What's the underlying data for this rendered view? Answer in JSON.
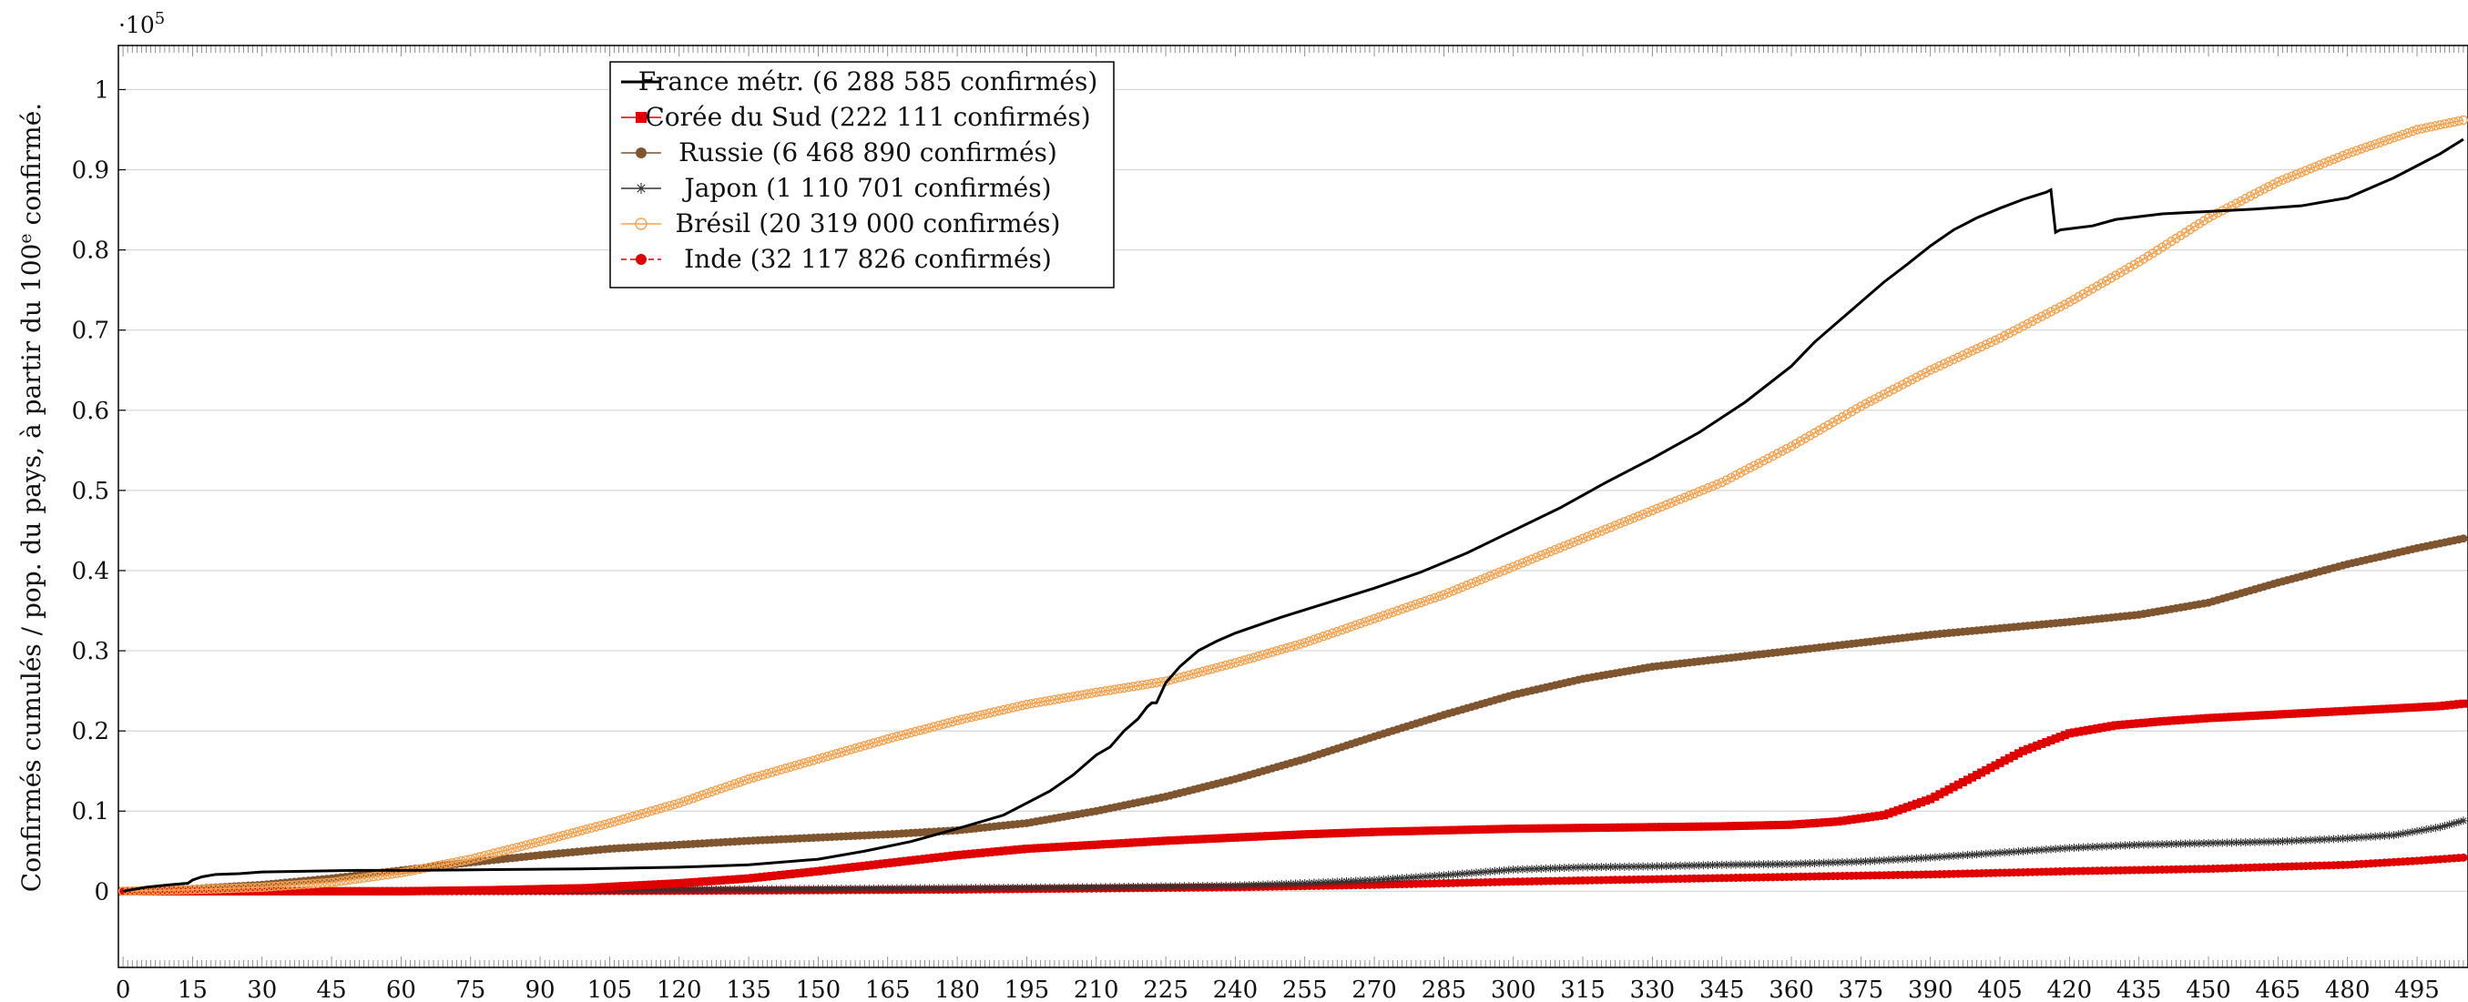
{
  "chart_data": {
    "type": "line",
    "xlabel": "",
    "ylabel": "Confirmés cumulés / pop. du pays, à partir du 100e confirmé.",
    "ylabel_main": "Confirmés cumulés / pop. du pays, à partir du 100",
    "ylabel_sup": "e",
    "ylabel_tail": " confirmé.",
    "y_exponent_base": "·10",
    "y_exponent_power": "5",
    "xlim": [
      -1,
      506
    ],
    "ylim": [
      -0.095,
      1.055
    ],
    "x_ticks": [
      0,
      15,
      30,
      45,
      60,
      75,
      90,
      105,
      120,
      135,
      150,
      165,
      180,
      195,
      210,
      225,
      240,
      255,
      270,
      285,
      300,
      315,
      330,
      345,
      360,
      375,
      390,
      405,
      420,
      435,
      450,
      465,
      480,
      495
    ],
    "y_ticks": [
      0,
      0.1,
      0.2,
      0.3,
      0.4,
      0.5,
      0.6,
      0.7,
      0.8,
      0.9,
      1
    ],
    "y_tick_labels": [
      "0",
      "0.1",
      "0.2",
      "0.3",
      "0.4",
      "0.5",
      "0.6",
      "0.7",
      "0.8",
      "0.9",
      "1"
    ],
    "grid": "horizontal",
    "legend_position": "top-left",
    "series": [
      {
        "name": "France métr. (6 288 585 confirmés)",
        "color": "#000000",
        "marker": "none",
        "x": [
          0,
          5,
          10,
          14,
          15,
          17,
          20,
          25,
          30,
          40,
          50,
          60,
          80,
          100,
          120,
          135,
          150,
          160,
          170,
          180,
          190,
          195,
          200,
          205,
          210,
          213,
          216,
          219,
          221,
          222,
          223,
          225,
          228,
          232,
          236,
          240,
          250,
          260,
          270,
          280,
          290,
          300,
          310,
          320,
          330,
          340,
          350,
          360,
          365,
          370,
          375,
          380,
          385,
          390,
          395,
          400,
          405,
          410,
          415,
          416,
          417,
          418,
          425,
          430,
          440,
          450,
          460,
          470,
          480,
          490,
          500,
          505
        ],
        "y": [
          0.0,
          0.005,
          0.008,
          0.01,
          0.014,
          0.018,
          0.021,
          0.022,
          0.024,
          0.025,
          0.026,
          0.026,
          0.027,
          0.028,
          0.03,
          0.033,
          0.04,
          0.05,
          0.062,
          0.078,
          0.095,
          0.11,
          0.125,
          0.145,
          0.17,
          0.18,
          0.2,
          0.215,
          0.23,
          0.235,
          0.235,
          0.26,
          0.28,
          0.3,
          0.312,
          0.322,
          0.342,
          0.36,
          0.378,
          0.398,
          0.422,
          0.45,
          0.478,
          0.51,
          0.54,
          0.572,
          0.61,
          0.655,
          0.685,
          0.71,
          0.735,
          0.76,
          0.782,
          0.805,
          0.825,
          0.84,
          0.852,
          0.863,
          0.872,
          0.875,
          0.822,
          0.825,
          0.83,
          0.838,
          0.845,
          0.848,
          0.851,
          0.855,
          0.865,
          0.89,
          0.92,
          0.938
        ]
      },
      {
        "name": "Corée du Sud (222 111 confirmés)",
        "color": "#e00000",
        "marker": "square",
        "x": [
          0,
          20,
          40,
          60,
          80,
          100,
          120,
          135,
          150,
          165,
          180,
          195,
          210,
          225,
          240,
          255,
          270,
          285,
          300,
          315,
          330,
          345,
          360,
          370,
          380,
          390,
          400,
          410,
          420,
          430,
          440,
          450,
          460,
          470,
          480,
          490,
          500,
          505
        ],
        "y": [
          0.0,
          0.0,
          0.0,
          0.0,
          0.0015,
          0.004,
          0.01,
          0.016,
          0.025,
          0.035,
          0.045,
          0.053,
          0.058,
          0.063,
          0.067,
          0.071,
          0.074,
          0.076,
          0.078,
          0.079,
          0.08,
          0.081,
          0.083,
          0.087,
          0.095,
          0.115,
          0.145,
          0.175,
          0.197,
          0.207,
          0.212,
          0.216,
          0.219,
          0.222,
          0.225,
          0.228,
          0.231,
          0.234
        ]
      },
      {
        "name": "Russie (6 468 890 confirmés)",
        "color": "#7f5530",
        "marker": "circle",
        "x": [
          0,
          15,
          30,
          45,
          60,
          75,
          90,
          105,
          120,
          135,
          150,
          165,
          180,
          195,
          210,
          225,
          240,
          255,
          270,
          285,
          300,
          315,
          330,
          345,
          360,
          375,
          390,
          405,
          420,
          435,
          450,
          465,
          480,
          495,
          505
        ],
        "y": [
          0.0,
          0.003,
          0.008,
          0.016,
          0.026,
          0.036,
          0.045,
          0.053,
          0.058,
          0.063,
          0.067,
          0.071,
          0.076,
          0.085,
          0.1,
          0.118,
          0.14,
          0.165,
          0.193,
          0.22,
          0.245,
          0.265,
          0.28,
          0.29,
          0.3,
          0.31,
          0.32,
          0.328,
          0.336,
          0.345,
          0.36,
          0.385,
          0.408,
          0.428,
          0.44
        ]
      },
      {
        "name": "Japon (1 110 701 confirmés)",
        "color": "#333333",
        "marker": "star",
        "x": [
          0,
          30,
          60,
          90,
          120,
          150,
          180,
          210,
          240,
          255,
          270,
          285,
          300,
          315,
          330,
          345,
          360,
          375,
          390,
          405,
          420,
          435,
          450,
          465,
          480,
          490,
          500,
          505
        ],
        "y": [
          0.0,
          0.0,
          0.0005,
          0.001,
          0.002,
          0.003,
          0.004,
          0.005,
          0.007,
          0.01,
          0.014,
          0.02,
          0.027,
          0.03,
          0.031,
          0.033,
          0.034,
          0.037,
          0.042,
          0.048,
          0.054,
          0.058,
          0.06,
          0.062,
          0.066,
          0.07,
          0.08,
          0.088
        ]
      },
      {
        "name": "Brésil (20 319 000 confirmés)",
        "color": "#f6a14e",
        "marker": "open-circle",
        "x": [
          0,
          15,
          30,
          45,
          60,
          75,
          90,
          105,
          120,
          135,
          150,
          165,
          180,
          195,
          210,
          225,
          240,
          255,
          270,
          285,
          300,
          315,
          330,
          345,
          360,
          375,
          390,
          405,
          420,
          435,
          450,
          465,
          480,
          495,
          505
        ],
        "y": [
          0.0,
          0.002,
          0.005,
          0.011,
          0.023,
          0.04,
          0.062,
          0.085,
          0.11,
          0.14,
          0.165,
          0.19,
          0.213,
          0.233,
          0.248,
          0.262,
          0.285,
          0.31,
          0.34,
          0.37,
          0.405,
          0.44,
          0.475,
          0.51,
          0.555,
          0.605,
          0.65,
          0.69,
          0.735,
          0.785,
          0.84,
          0.885,
          0.92,
          0.95,
          0.962
        ]
      },
      {
        "name": "Inde (32 117 826 confirmés)",
        "color": "#e00000",
        "marker": "dot-dashed",
        "x": [
          0,
          60,
          120,
          180,
          240,
          270,
          300,
          330,
          360,
          390,
          420,
          450,
          480,
          495,
          505
        ],
        "y": [
          0.0,
          0.0,
          0.0005,
          0.002,
          0.005,
          0.008,
          0.012,
          0.015,
          0.018,
          0.021,
          0.025,
          0.028,
          0.033,
          0.038,
          0.042
        ]
      }
    ]
  }
}
